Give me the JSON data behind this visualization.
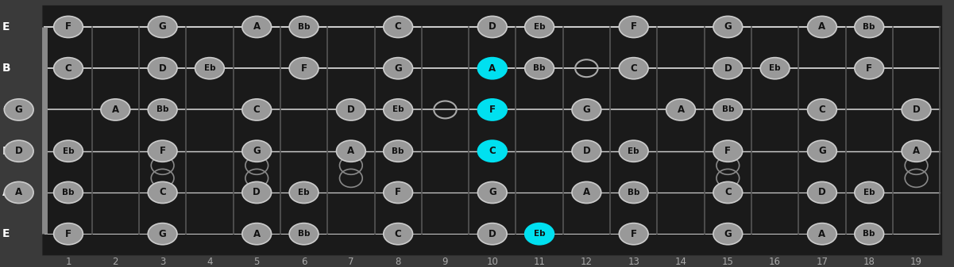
{
  "bg_color": "#3a3a3a",
  "fretboard_color": "#1a1a1a",
  "string_color": "#cccccc",
  "fret_color": "#555555",
  "nut_color": "#888888",
  "note_color": "#999999",
  "note_edge_color": "#cccccc",
  "note_text_color": "#111111",
  "highlight_color": "#00e0f0",
  "label_color": "#ffffff",
  "fret_label_color": "#aaaaaa",
  "string_names": [
    "E",
    "B",
    "G",
    "D",
    "A",
    "E"
  ],
  "num_frets": 19,
  "fret_notes": [
    [
      "F",
      "",
      "G",
      "",
      "A",
      "Bb",
      "",
      "C",
      "",
      "D",
      "Eb",
      "",
      "F",
      "",
      "G",
      "",
      "A",
      "Bb",
      ""
    ],
    [
      "C",
      "",
      "D",
      "Eb",
      "",
      "F",
      "",
      "G",
      "",
      "A",
      "Bb",
      "",
      "C",
      "",
      "D",
      "Eb",
      "",
      "F",
      ""
    ],
    [
      "",
      "A",
      "Bb",
      "",
      "C",
      "",
      "D",
      "Eb",
      "",
      "F",
      "",
      "G",
      "",
      "A",
      "Bb",
      "",
      "C",
      "",
      "D"
    ],
    [
      "Eb",
      "",
      "F",
      "",
      "G",
      "",
      "A",
      "Bb",
      "",
      "C",
      "",
      "D",
      "Eb",
      "",
      "F",
      "",
      "G",
      "",
      "A"
    ],
    [
      "Bb",
      "",
      "C",
      "",
      "D",
      "Eb",
      "",
      "F",
      "",
      "G",
      "",
      "A",
      "Bb",
      "",
      "C",
      "",
      "D",
      "Eb",
      ""
    ],
    [
      "F",
      "",
      "G",
      "",
      "A",
      "Bb",
      "",
      "C",
      "",
      "D",
      "Eb",
      "",
      "F",
      "",
      "G",
      "",
      "A",
      "Bb",
      ""
    ]
  ],
  "open_notes": [
    "",
    "",
    "G",
    "D",
    "A",
    ""
  ],
  "highlighted": [
    [
      0,
      9,
      false
    ],
    [
      1,
      9,
      true
    ],
    [
      2,
      9,
      true
    ],
    [
      3,
      9,
      true
    ],
    [
      4,
      9,
      false
    ],
    [
      5,
      10,
      true
    ]
  ],
  "open_circles": [
    [
      2,
      8
    ],
    [
      1,
      11
    ]
  ],
  "double_circles": [
    [
      3,
      2
    ],
    [
      4,
      2
    ],
    [
      3,
      4
    ],
    [
      4,
      4
    ],
    [
      3,
      6
    ],
    [
      4,
      6
    ],
    [
      3,
      14
    ],
    [
      4,
      14
    ],
    [
      3,
      18
    ],
    [
      4,
      18
    ]
  ],
  "fret_marker_singles": [
    9
  ]
}
